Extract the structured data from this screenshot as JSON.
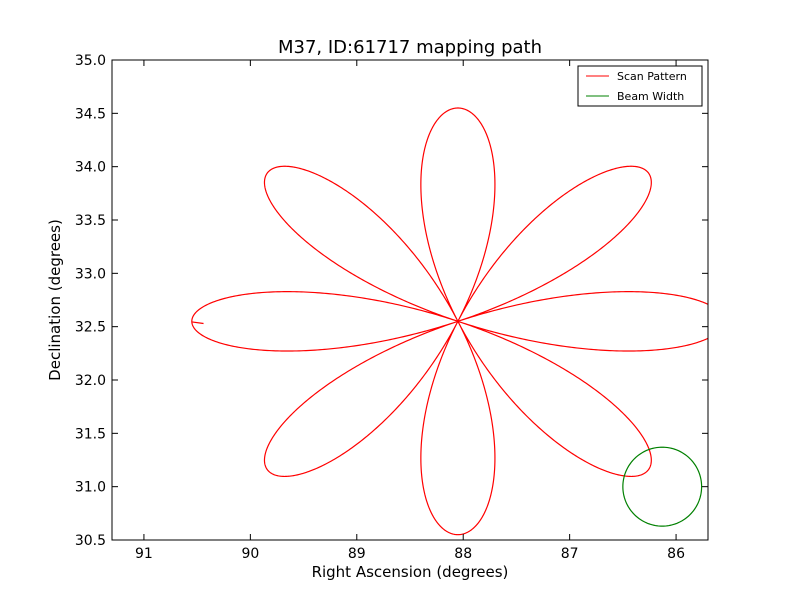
{
  "chart_data": {
    "type": "line",
    "title": "M37, ID:61717 mapping path",
    "xlabel": "Right Ascension (degrees)",
    "ylabel": "Declination (degrees)",
    "xlim": [
      91.3,
      85.7
    ],
    "ylim": [
      30.5,
      35.0
    ],
    "x_inverted": true,
    "grid": false,
    "legend_position": "top-right",
    "xticks": [
      {
        "value": 91,
        "label": "91"
      },
      {
        "value": 90,
        "label": "90"
      },
      {
        "value": 89,
        "label": "89"
      },
      {
        "value": 88,
        "label": "88"
      },
      {
        "value": 87,
        "label": "87"
      },
      {
        "value": 86,
        "label": "86"
      }
    ],
    "yticks": [
      {
        "value": 30.5,
        "label": "30.5"
      },
      {
        "value": 31.0,
        "label": "31.0"
      },
      {
        "value": 31.5,
        "label": "31.5"
      },
      {
        "value": 32.0,
        "label": "32.0"
      },
      {
        "value": 32.5,
        "label": "32.5"
      },
      {
        "value": 33.0,
        "label": "33.0"
      },
      {
        "value": 33.5,
        "label": "33.5"
      },
      {
        "value": 34.0,
        "label": "34.0"
      },
      {
        "value": 34.5,
        "label": "34.5"
      },
      {
        "value": 35.0,
        "label": "35.0"
      }
    ],
    "series": [
      {
        "name": "Scan Pattern",
        "color": "#ff0000",
        "kind": "rose",
        "center": [
          88.05,
          32.55
        ],
        "petals": 8,
        "ra_amplitude": 2.5,
        "dec_amplitude": 2.0,
        "start_point": [
          90.55,
          32.55
        ],
        "end_point": [
          90.44,
          32.53
        ]
      },
      {
        "name": "Beam Width",
        "color": "#008000",
        "kind": "circle",
        "center": [
          86.13,
          31.0
        ],
        "radius_ra": 0.37,
        "radius_dec": 0.37
      }
    ]
  }
}
